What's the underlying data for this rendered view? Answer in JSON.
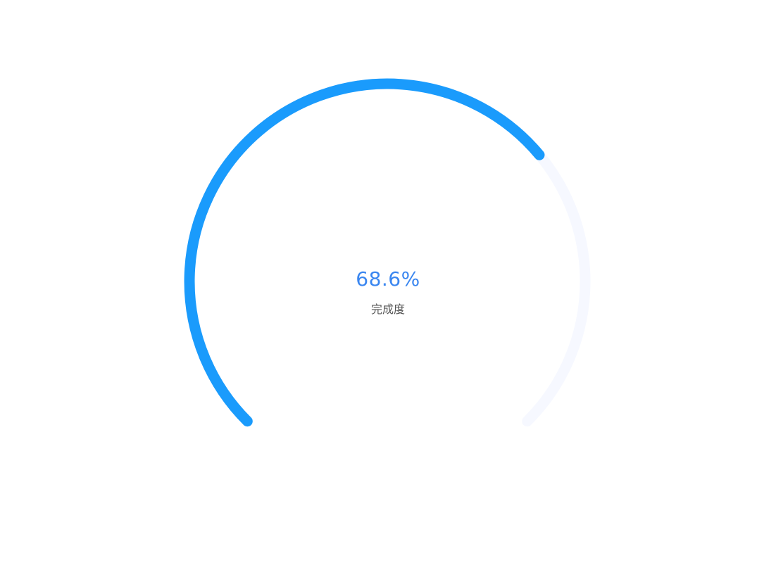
{
  "chart_data": {
    "type": "gauge",
    "value": 68.6,
    "max": 100,
    "value_label": "68.6%",
    "caption": "完成度",
    "start_angle_deg": 225,
    "end_angle_deg": -45
  },
  "colors": {
    "progress": "#1a9bfc",
    "track": "#f6f8ff",
    "value_text": "#3a86f0",
    "caption_text": "#555555"
  }
}
